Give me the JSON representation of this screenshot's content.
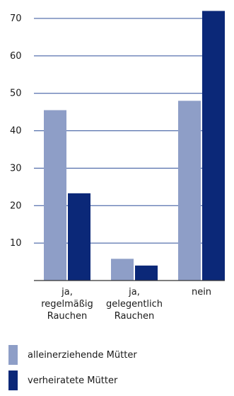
{
  "colors": {
    "series_light": "#8e9ec7",
    "series_dark": "#0b2878",
    "gridline": "#2f4f9a",
    "axis": "#333333"
  },
  "chart_data": {
    "type": "bar",
    "categories": [
      [
        "ja,",
        "regelmäßig",
        "Rauchen"
      ],
      [
        "ja,",
        "gelegentlich",
        "Rauchen"
      ],
      [
        "nein"
      ]
    ],
    "series": [
      {
        "name": "alleinerziehende Mütter",
        "values": [
          45.5,
          5.8,
          48
        ]
      },
      {
        "name": "verheiratete Mütter",
        "values": [
          23.3,
          4,
          72
        ]
      }
    ],
    "ylim": [
      0,
      70
    ],
    "yticks": [
      10,
      20,
      30,
      40,
      50,
      60,
      70
    ],
    "grid": true,
    "legend_position": "bottom",
    "title": "",
    "xlabel": "",
    "ylabel": ""
  },
  "legend": {
    "items": [
      {
        "label": "alleinerziehende Mütter"
      },
      {
        "label": "verheiratete Mütter"
      }
    ]
  }
}
